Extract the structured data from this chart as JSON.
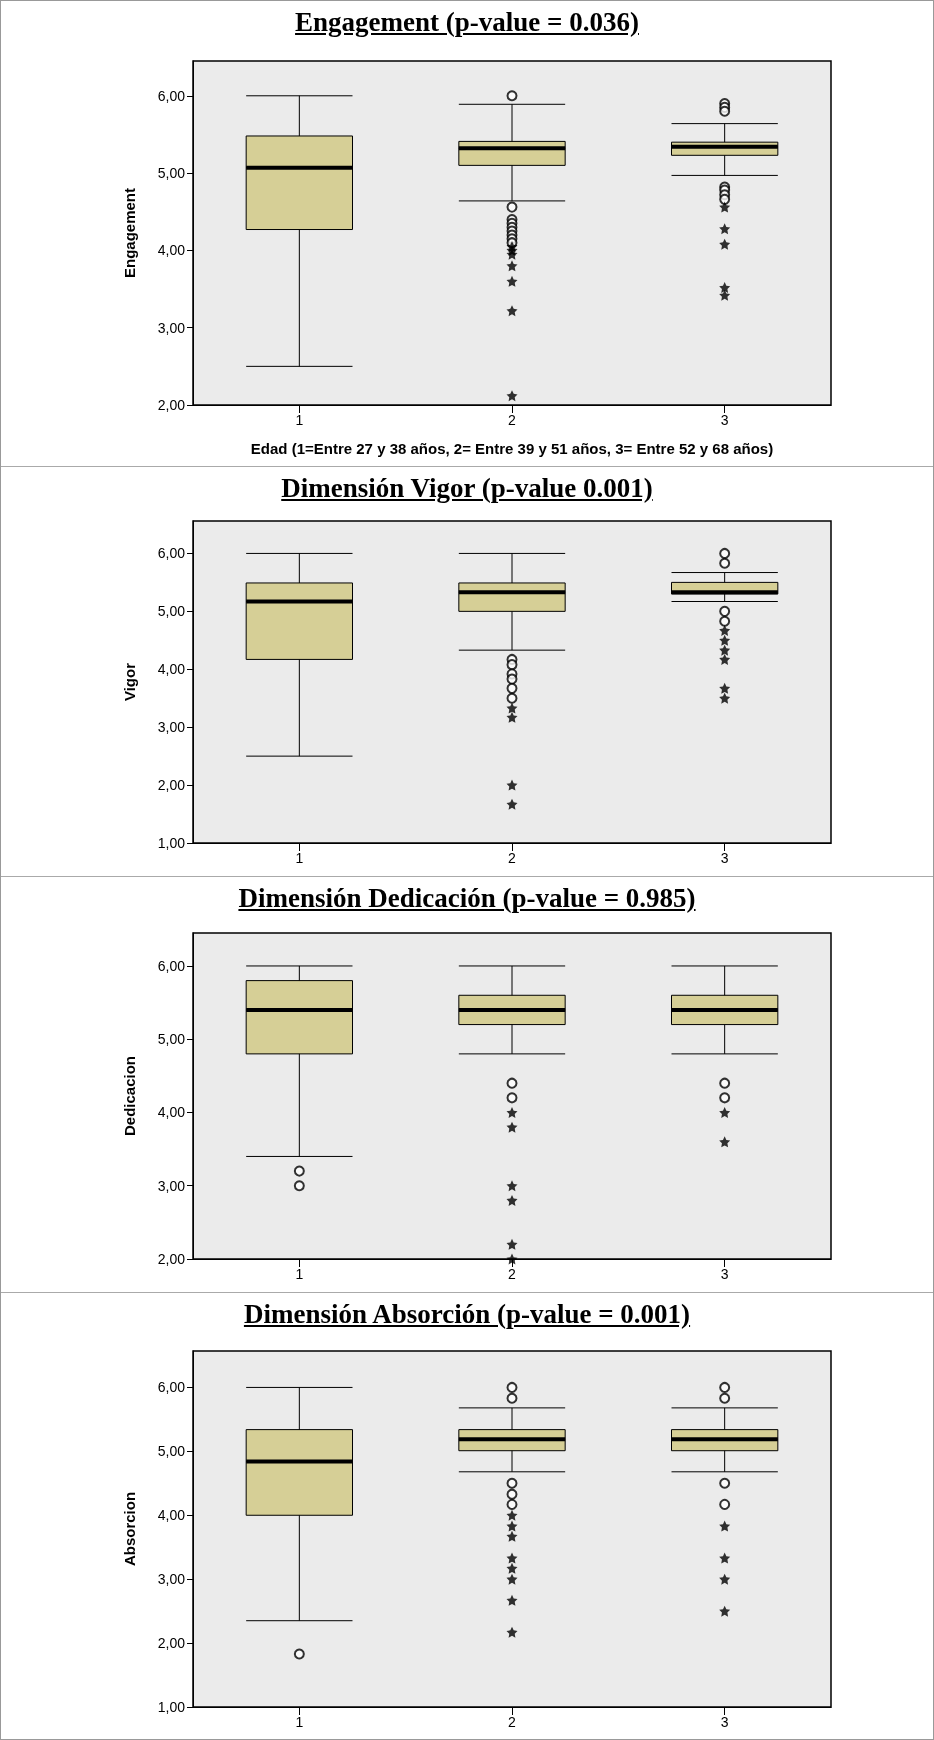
{
  "chart_data": [
    {
      "type": "box",
      "title": "Engagement (p-value = 0.036)",
      "ylabel": "Engagement",
      "xlabel": "Edad (1=Entre 27 y 38 años, 2= Entre 39 y 51 años, 3= Entre 52 y 68 años)",
      "categories": [
        "1",
        "2",
        "3"
      ],
      "ylim": [
        2,
        6.45
      ],
      "yticks": [
        {
          "value": 2,
          "label": "2,00"
        },
        {
          "value": 3,
          "label": "3,00"
        },
        {
          "value": 4,
          "label": "4,00"
        },
        {
          "value": 5,
          "label": "5,00"
        },
        {
          "value": 6,
          "label": "6,00"
        }
      ],
      "grid": false,
      "series": [
        {
          "type": "box",
          "color": "#d6cf96",
          "boxes": [
            {
              "low": 2.5,
              "q1": 4.27,
              "median": 5.07,
              "q3": 5.48,
              "high": 6.0
            },
            {
              "low": 4.64,
              "q1": 5.1,
              "median": 5.32,
              "q3": 5.41,
              "high": 5.89,
              "outliers": [
                6.0,
                4.56,
                4.4,
                4.35,
                4.3,
                4.25,
                4.2,
                4.15,
                4.1
              ]
            },
            {
              "low": 4.97,
              "q1": 5.23,
              "median": 5.34,
              "q3": 5.4,
              "high": 5.64,
              "outliers": [
                5.9,
                5.85,
                5.8,
                4.82,
                4.78,
                4.72,
                4.66
              ]
            }
          ]
        },
        {
          "type": "scatter",
          "marker": "star",
          "color": "#000000",
          "x": [
            "2",
            "2",
            "2",
            "2",
            "2",
            "2",
            "2",
            "3",
            "3",
            "3",
            "3",
            "3",
            "3"
          ],
          "values": [
            4.05,
            4.0,
            3.95,
            3.8,
            3.6,
            3.22,
            2.12,
            4.56,
            4.28,
            null,
            4.08,
            3.52,
            3.42
          ]
        }
      ]
    },
    {
      "type": "box",
      "title": "Dimensión Vigor (p-value 0.001)",
      "ylabel": "Vigor",
      "categories": [
        "1",
        "2",
        "3"
      ],
      "ylim": [
        1,
        6.56
      ],
      "yticks": [
        {
          "value": 1,
          "label": "1,00"
        },
        {
          "value": 2,
          "label": "2,00"
        },
        {
          "value": 3,
          "label": "3,00"
        },
        {
          "value": 4,
          "label": "4,00"
        },
        {
          "value": 5,
          "label": "5,00"
        },
        {
          "value": 6,
          "label": "6,00"
        }
      ],
      "grid": false,
      "series": [
        {
          "type": "box",
          "color": "#d6cf96",
          "boxes": [
            {
              "low": 2.5,
              "q1": 4.17,
              "median": 5.17,
              "q3": 5.49,
              "high": 6.0
            },
            {
              "low": 4.33,
              "q1": 5.0,
              "median": 5.33,
              "q3": 5.49,
              "high": 6.0,
              "outliers": [
                4.17,
                4.08,
                3.92,
                3.83,
                3.67,
                3.5
              ]
            },
            {
              "low": 5.17,
              "q1": 5.3,
              "median": 5.33,
              "q3": 5.5,
              "high": 5.67,
              "outliers": [
                6.0,
                5.83,
                5.0,
                4.83
              ]
            }
          ]
        },
        {
          "type": "scatter",
          "marker": "star",
          "color": "#000000",
          "x": [
            "2",
            "2",
            "2",
            "2",
            "3",
            "3",
            "3",
            "3",
            "3",
            "3"
          ],
          "values": [
            3.33,
            3.17,
            2.0,
            1.67,
            4.67,
            4.5,
            4.33,
            4.17,
            3.67,
            3.5
          ]
        }
      ]
    },
    {
      "type": "box",
      "title": "Dimensión Dedicación (p-value = 0.985)",
      "ylabel": "Dedicacion",
      "categories": [
        "1",
        "2",
        "3"
      ],
      "ylim": [
        2,
        6.45
      ],
      "yticks": [
        {
          "value": 2,
          "label": "2,00"
        },
        {
          "value": 3,
          "label": "3,00"
        },
        {
          "value": 4,
          "label": "4,00"
        },
        {
          "value": 5,
          "label": "5,00"
        },
        {
          "value": 6,
          "label": "6,00"
        }
      ],
      "grid": false,
      "series": [
        {
          "type": "box",
          "color": "#d6cf96",
          "boxes": [
            {
              "low": 3.4,
              "q1": 4.8,
              "median": 5.4,
              "q3": 5.8,
              "high": 6.0,
              "outliers": [
                3.2,
                3.0
              ]
            },
            {
              "low": 4.8,
              "q1": 5.2,
              "median": 5.4,
              "q3": 5.6,
              "high": 6.0,
              "outliers": [
                4.4,
                4.2
              ]
            },
            {
              "low": 4.8,
              "q1": 5.2,
              "median": 5.4,
              "q3": 5.6,
              "high": 6.0,
              "outliers": [
                4.4,
                4.2
              ]
            }
          ]
        },
        {
          "type": "scatter",
          "marker": "star",
          "color": "#000000",
          "x": [
            "2",
            "2",
            "2",
            "2",
            "2",
            "2",
            "3",
            "3"
          ],
          "values": [
            4.0,
            3.8,
            3.0,
            2.8,
            2.2,
            2.0,
            4.0,
            3.6
          ]
        }
      ]
    },
    {
      "type": "box",
      "title": "Dimensión Absorción (p-value = 0.001)",
      "ylabel": "Absorcion",
      "categories": [
        "1",
        "2",
        "3"
      ],
      "ylim": [
        1,
        6.57
      ],
      "yticks": [
        {
          "value": 1,
          "label": "1,00"
        },
        {
          "value": 2,
          "label": "2,00"
        },
        {
          "value": 3,
          "label": "3,00"
        },
        {
          "value": 4,
          "label": "4,00"
        },
        {
          "value": 5,
          "label": "5,00"
        },
        {
          "value": 6,
          "label": "6,00"
        }
      ],
      "grid": false,
      "series": [
        {
          "type": "box",
          "color": "#d6cf96",
          "boxes": [
            {
              "low": 2.35,
              "q1": 4.0,
              "median": 4.84,
              "q3": 5.34,
              "high": 6.0,
              "outliers": [
                1.83
              ]
            },
            {
              "low": 4.68,
              "q1": 5.01,
              "median": 5.19,
              "q3": 5.34,
              "high": 5.68,
              "outliers": [
                6.0,
                5.83,
                4.5,
                4.33,
                4.17
              ]
            },
            {
              "low": 4.68,
              "q1": 5.01,
              "median": 5.19,
              "q3": 5.34,
              "high": 5.68,
              "outliers": [
                6.0,
                5.83,
                4.5,
                4.17
              ]
            }
          ]
        },
        {
          "type": "scatter",
          "marker": "star",
          "color": "#000000",
          "x": [
            "2",
            "2",
            "2",
            "2",
            "2",
            "2",
            "2",
            "2",
            "3",
            "3",
            "3",
            "3"
          ],
          "values": [
            4.0,
            3.83,
            3.67,
            3.33,
            3.17,
            3.0,
            2.67,
            2.17,
            3.83,
            3.33,
            3.0,
            2.5
          ]
        }
      ]
    }
  ]
}
